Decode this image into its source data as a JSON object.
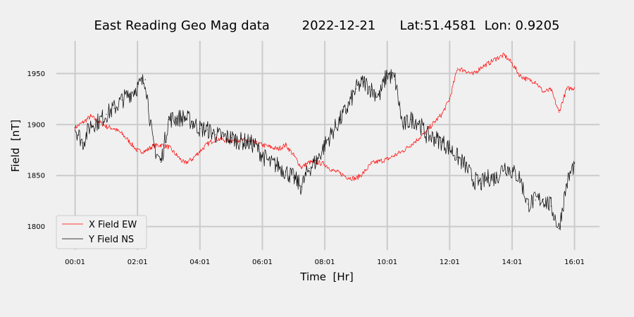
{
  "chart_data": {
    "type": "line",
    "title": "East Reading Geo Mag data        2022-12-21      Lat:51.4581  Lon: 0.9205",
    "xlabel": "Time  [Hr]",
    "ylabel": "Field  [nT]",
    "x_tick_labels": [
      "00:01",
      "02:01",
      "04:01",
      "06:01",
      "08:01",
      "10:01",
      "12:01",
      "14:01",
      "16:01"
    ],
    "x_tick_values_hr": [
      0,
      2,
      4,
      6,
      8,
      10,
      12,
      14,
      16
    ],
    "y_ticks": [
      1800,
      1850,
      1900,
      1950
    ],
    "xlim_hr": [
      -0.6,
      16.8
    ],
    "ylim": [
      1777,
      1982
    ],
    "grid": true,
    "legend_position": "lower-left",
    "series": [
      {
        "name": "X Field EW",
        "color": "#ff0000",
        "x_hr": [
          0,
          0.25,
          0.5,
          0.75,
          1,
          1.25,
          1.5,
          1.75,
          2,
          2.25,
          2.5,
          2.75,
          3,
          3.25,
          3.5,
          3.75,
          4,
          4.25,
          4.5,
          4.75,
          5,
          5.25,
          5.5,
          5.75,
          6,
          6.25,
          6.5,
          6.75,
          7,
          7.25,
          7.5,
          7.75,
          8,
          8.25,
          8.5,
          8.75,
          9,
          9.25,
          9.5,
          9.75,
          10,
          10.25,
          10.5,
          10.75,
          11,
          11.25,
          11.5,
          11.75,
          12,
          12.25,
          12.5,
          12.75,
          13,
          13.25,
          13.5,
          13.75,
          14,
          14.25,
          14.5,
          14.75,
          15,
          15.25,
          15.5,
          15.75,
          16
        ],
        "y": [
          1897,
          1902,
          1908,
          1903,
          1898,
          1896,
          1891,
          1883,
          1874,
          1874,
          1879,
          1880,
          1878,
          1870,
          1862,
          1866,
          1874,
          1881,
          1886,
          1885,
          1884,
          1885,
          1884,
          1882,
          1880,
          1878,
          1876,
          1880,
          1870,
          1858,
          1863,
          1863,
          1861,
          1855,
          1852,
          1848,
          1847,
          1853,
          1862,
          1864,
          1866,
          1870,
          1874,
          1880,
          1886,
          1893,
          1902,
          1910,
          1925,
          1955,
          1953,
          1949,
          1956,
          1960,
          1965,
          1968,
          1960,
          1948,
          1944,
          1942,
          1932,
          1934,
          1912,
          1935,
          1936
        ]
      },
      {
        "name": "Y Field NS",
        "color": "#000000",
        "x_hr": [
          0,
          0.25,
          0.5,
          0.75,
          1,
          1.25,
          1.5,
          1.75,
          2,
          2.25,
          2.5,
          2.75,
          3,
          3.25,
          3.5,
          3.75,
          4,
          4.25,
          4.5,
          4.75,
          5,
          5.25,
          5.5,
          5.75,
          6,
          6.25,
          6.5,
          6.75,
          7,
          7.25,
          7.5,
          7.75,
          8,
          8.25,
          8.5,
          8.75,
          9,
          9.25,
          9.5,
          9.75,
          10,
          10.25,
          10.5,
          10.75,
          11,
          11.25,
          11.5,
          11.75,
          12,
          12.25,
          12.5,
          12.75,
          13,
          13.25,
          13.5,
          13.75,
          14,
          14.25,
          14.5,
          14.75,
          15,
          15.25,
          15.5,
          15.75,
          16
        ],
        "y": [
          1897,
          1882,
          1900,
          1903,
          1910,
          1916,
          1924,
          1930,
          1937,
          1944,
          1880,
          1863,
          1905,
          1906,
          1907,
          1903,
          1896,
          1895,
          1890,
          1888,
          1887,
          1884,
          1883,
          1880,
          1870,
          1862,
          1860,
          1854,
          1848,
          1839,
          1857,
          1865,
          1880,
          1893,
          1905,
          1918,
          1935,
          1942,
          1934,
          1928,
          1950,
          1944,
          1898,
          1905,
          1903,
          1890,
          1887,
          1883,
          1877,
          1868,
          1860,
          1846,
          1842,
          1848,
          1848,
          1860,
          1854,
          1848,
          1822,
          1826,
          1827,
          1820,
          1798,
          1842,
          1862
        ]
      }
    ]
  }
}
